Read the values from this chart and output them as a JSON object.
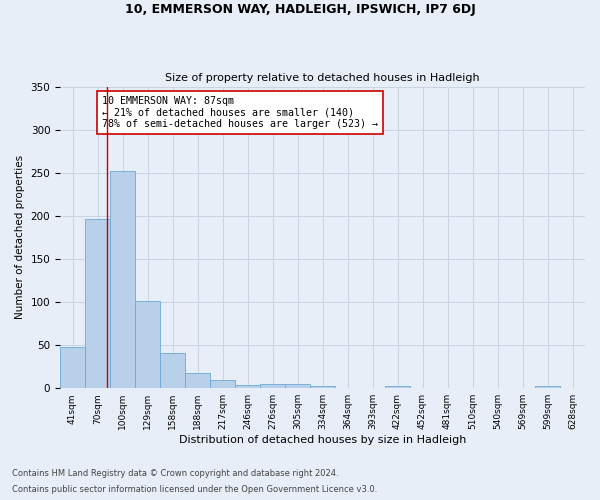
{
  "title1": "10, EMMERSON WAY, HADLEIGH, IPSWICH, IP7 6DJ",
  "title2": "Size of property relative to detached houses in Hadleigh",
  "xlabel": "Distribution of detached houses by size in Hadleigh",
  "ylabel": "Number of detached properties",
  "footnote1": "Contains HM Land Registry data © Crown copyright and database right 2024.",
  "footnote2": "Contains public sector information licensed under the Open Government Licence v3.0.",
  "bin_labels": [
    "41sqm",
    "70sqm",
    "100sqm",
    "129sqm",
    "158sqm",
    "188sqm",
    "217sqm",
    "246sqm",
    "276sqm",
    "305sqm",
    "334sqm",
    "364sqm",
    "393sqm",
    "422sqm",
    "452sqm",
    "481sqm",
    "510sqm",
    "540sqm",
    "569sqm",
    "599sqm",
    "628sqm"
  ],
  "bar_values": [
    48,
    196,
    252,
    101,
    41,
    18,
    9,
    4,
    5,
    5,
    2,
    0,
    0,
    2,
    0,
    0,
    0,
    0,
    0,
    3,
    0
  ],
  "bar_color": "#b8d0ea",
  "bar_edgecolor": "#6aaad4",
  "grid_color": "#c8d4e4",
  "background_color": "#e8eef8",
  "vline_x": 1.38,
  "vline_color": "#cc0000",
  "annotation_text": "10 EMMERSON WAY: 87sqm\n← 21% of detached houses are smaller (140)\n78% of semi-detached houses are larger (523) →",
  "annotation_box_color": "#ffffff",
  "annotation_box_edgecolor": "#cc0000",
  "ylim": [
    0,
    350
  ],
  "yticks": [
    0,
    50,
    100,
    150,
    200,
    250,
    300,
    350
  ]
}
